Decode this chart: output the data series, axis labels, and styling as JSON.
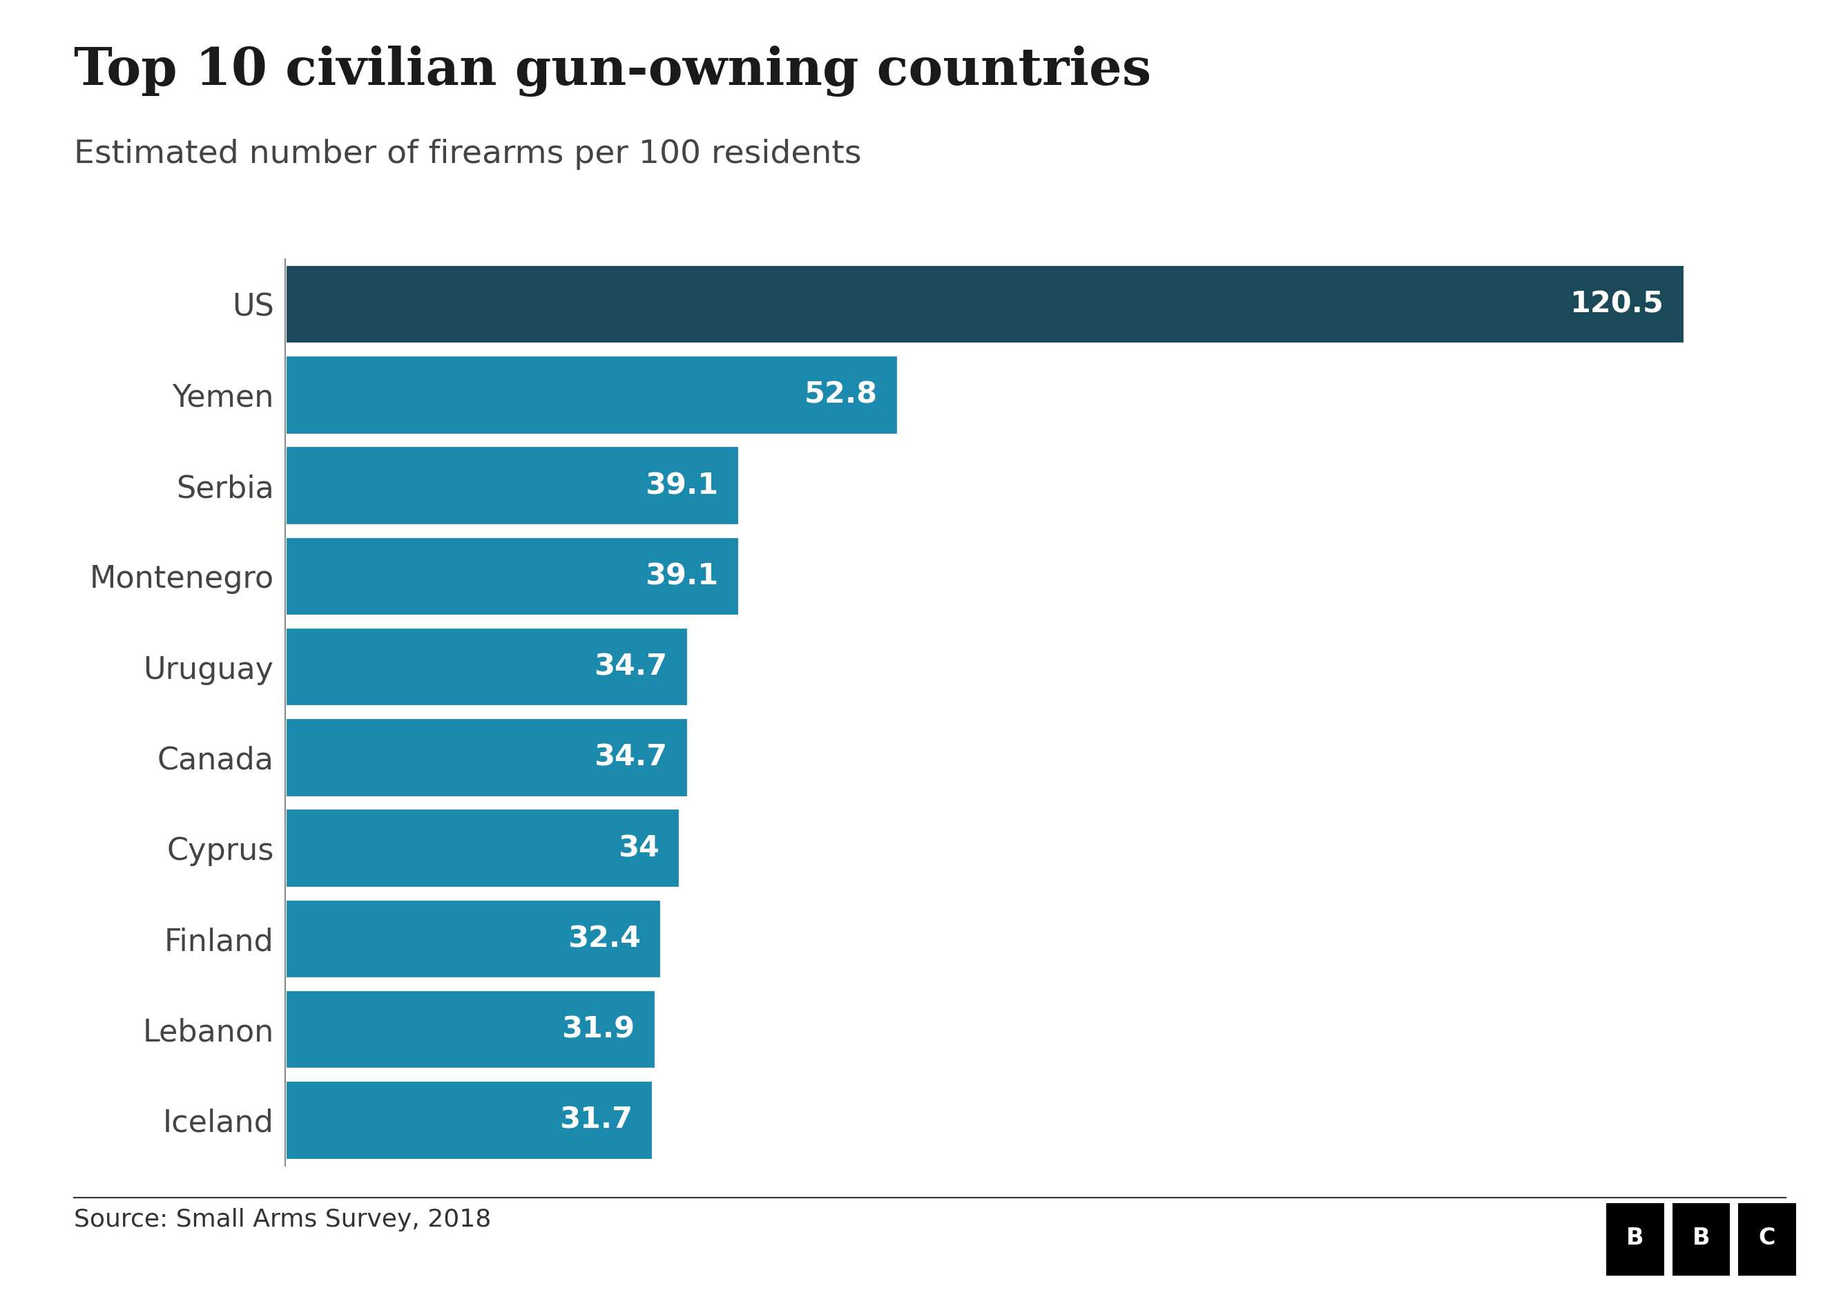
{
  "title": "Top 10 civilian gun-owning countries",
  "subtitle": "Estimated number of firearms per 100 residents",
  "source": "Source: Small Arms Survey, 2018",
  "categories": [
    "US",
    "Yemen",
    "Serbia",
    "Montenegro",
    "Uruguay",
    "Canada",
    "Cyprus",
    "Finland",
    "Lebanon",
    "Iceland"
  ],
  "values": [
    120.5,
    52.8,
    39.1,
    39.1,
    34.7,
    34.7,
    34.0,
    32.4,
    31.9,
    31.7
  ],
  "value_labels": [
    "120.5",
    "52.8",
    "39.1",
    "39.1",
    "34.7",
    "34.7",
    "34",
    "32.4",
    "31.9",
    "31.7"
  ],
  "bar_color_us": "#1a4a5a",
  "bar_color_others": "#1b8aad",
  "label_color": "#ffffff",
  "title_color": "#1a1a1a",
  "subtitle_color": "#444444",
  "source_color": "#333333",
  "background_color": "#ffffff",
  "title_fontsize": 54,
  "subtitle_fontsize": 34,
  "label_fontsize": 31,
  "ytick_fontsize": 32,
  "source_fontsize": 26,
  "bar_gap": 0.12,
  "xlim": [
    0,
    130
  ]
}
